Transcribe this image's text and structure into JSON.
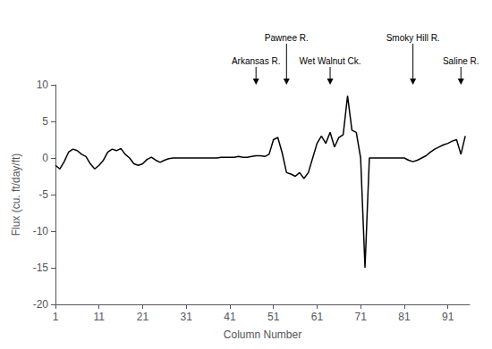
{
  "chart_data": {
    "type": "line",
    "xlabel": "Column Number",
    "ylabel": "Flux (cu. ft/day/ft)",
    "color": "#000000",
    "xlim": [
      1,
      96
    ],
    "ylim": [
      -20,
      10
    ],
    "xticks": [
      1,
      11,
      21,
      31,
      41,
      51,
      61,
      71,
      81,
      91
    ],
    "yticks": [
      -20,
      -15,
      -10,
      -5,
      0,
      5,
      10
    ],
    "grid": false,
    "annotations": [
      {
        "text": "Arkansas R.",
        "x": 47
      },
      {
        "text": "Pawnee R.",
        "x": 54
      },
      {
        "text": "Wet Walnut Ck.",
        "x": 64
      },
      {
        "text": "Smoky Hill R.",
        "x": 83
      },
      {
        "text": "Saline R.",
        "x": 94
      }
    ],
    "x": [
      1,
      2,
      3,
      4,
      5,
      6,
      7,
      8,
      9,
      10,
      11,
      12,
      13,
      14,
      15,
      16,
      17,
      18,
      19,
      20,
      21,
      22,
      23,
      24,
      25,
      26,
      27,
      28,
      29,
      30,
      31,
      32,
      33,
      34,
      35,
      36,
      37,
      38,
      39,
      40,
      41,
      42,
      43,
      44,
      45,
      46,
      47,
      48,
      49,
      50,
      51,
      52,
      53,
      54,
      55,
      56,
      57,
      58,
      59,
      60,
      61,
      62,
      63,
      64,
      65,
      66,
      67,
      68,
      69,
      70,
      71,
      72,
      73,
      74,
      75,
      76,
      77,
      78,
      79,
      80,
      81,
      82,
      83,
      84,
      85,
      86,
      87,
      88,
      89,
      90,
      91,
      92,
      93,
      94,
      95
    ],
    "values": [
      -1.0,
      -1.5,
      -0.5,
      0.8,
      1.2,
      1.0,
      0.5,
      0.2,
      -0.8,
      -1.5,
      -1.0,
      -0.3,
      0.8,
      1.2,
      1.0,
      1.3,
      0.5,
      0.0,
      -0.8,
      -1.0,
      -0.8,
      -0.2,
      0.1,
      -0.3,
      -0.6,
      -0.3,
      -0.1,
      0.0,
      0.0,
      0.0,
      0.0,
      0.0,
      0.0,
      0.0,
      0.0,
      0.0,
      0.0,
      0.0,
      0.1,
      0.1,
      0.1,
      0.1,
      0.2,
      0.1,
      0.1,
      0.2,
      0.3,
      0.3,
      0.2,
      0.5,
      2.5,
      2.8,
      0.7,
      -2.0,
      -2.2,
      -2.5,
      -2.0,
      -2.8,
      -2.0,
      0.0,
      2.0,
      3.0,
      2.0,
      3.5,
      1.5,
      2.8,
      3.2,
      8.5,
      3.8,
      3.5,
      0.0,
      -15.0,
      0.0,
      0.0,
      0.0,
      0.0,
      0.0,
      0.0,
      0.0,
      0.0,
      0.0,
      -0.3,
      -0.5,
      -0.3,
      0.0,
      0.3,
      0.8,
      1.2,
      1.5,
      1.8,
      2.0,
      2.3,
      2.5,
      0.5,
      3.0
    ]
  }
}
